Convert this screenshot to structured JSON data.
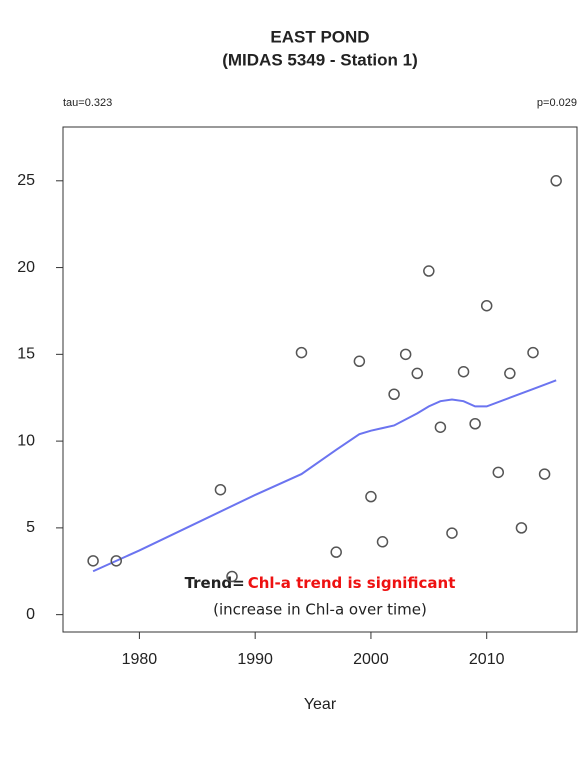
{
  "chart_data": {
    "type": "scatter",
    "title": "EAST POND",
    "subtitle": "(MIDAS 5349 - Station 1)",
    "stat_left": "tau=0.323",
    "stat_right": "p=0.029",
    "x_label": "Year",
    "annotation_lead": "Trend=",
    "annotation_highlight": "Chl-a trend is significant",
    "annotation_note": "(increase in Chl-a over time)",
    "x": [
      1976,
      1978,
      1987,
      1988,
      1994,
      1997,
      1999,
      2000,
      2001,
      2002,
      2003,
      2004,
      2005,
      2006,
      2007,
      2008,
      2009,
      2010,
      2011,
      2012,
      2013,
      2014,
      2015,
      2016
    ],
    "values": [
      3.1,
      3.1,
      7.2,
      2.2,
      15.1,
      3.6,
      14.6,
      6.8,
      4.2,
      12.7,
      15.0,
      13.9,
      19.8,
      10.8,
      4.7,
      14.0,
      11.0,
      17.8,
      8.2,
      13.9,
      5.0,
      15.1,
      8.1,
      25.0
    ],
    "point_color": "#555555",
    "trend_line": {
      "color": "#6b74f0",
      "x": [
        1976,
        1980,
        1985,
        1990,
        1994,
        1997,
        1999,
        2000,
        2002,
        2004,
        2005,
        2006,
        2007,
        2008,
        2009,
        2010,
        2012,
        2014,
        2016
      ],
      "y": [
        2.5,
        3.7,
        5.3,
        6.9,
        8.1,
        9.5,
        10.4,
        10.6,
        10.9,
        11.6,
        12.0,
        12.3,
        12.4,
        12.3,
        12.0,
        12.0,
        12.5,
        13.0,
        13.5
      ]
    },
    "xlim": [
      1973.4,
      2017.8
    ],
    "ylim": [
      -1.0,
      28.1
    ],
    "xticks": [
      1980,
      1990,
      2000,
      2010
    ],
    "yticks": [
      0,
      5,
      10,
      15,
      20,
      25
    ]
  }
}
